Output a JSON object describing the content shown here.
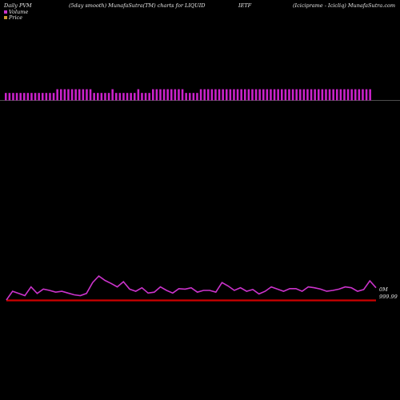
{
  "header": {
    "period": "Daily PVM",
    "description": "(5day smooth) MunafaSutra(TM) charts for LIQUID",
    "symbol": "IETF",
    "site": "(Iciciprame - Icicliq) MunafaSutra.com"
  },
  "legend": {
    "volume_label": "Volume",
    "price_label": "Price",
    "volume_color": "#cc33cc",
    "price_color": "#cc9933"
  },
  "colors": {
    "background": "#000000",
    "volume_bar": "#cc22cc",
    "volume_bar_down": "#33cc33",
    "price_line": "#cc33cc",
    "baseline": "#cc0000",
    "separator": "#999999"
  },
  "chart_data": [
    {
      "type": "bar",
      "title": "Volume",
      "values": [
        2,
        2,
        2,
        2,
        2,
        2,
        2,
        2,
        2,
        2,
        2,
        2,
        2,
        2,
        3,
        3,
        3,
        3,
        3,
        3,
        3,
        3,
        3,
        3,
        2,
        2,
        2,
        2,
        2,
        3,
        2,
        2,
        2,
        2,
        2,
        2,
        3,
        2,
        2,
        2,
        3,
        3,
        3,
        3,
        3,
        3,
        3,
        3,
        3,
        2,
        2,
        2,
        2,
        3,
        3,
        3,
        3,
        3,
        3,
        3,
        3,
        3,
        3,
        3,
        3,
        3,
        3,
        3,
        3,
        3,
        3,
        3,
        3,
        3,
        3,
        3,
        3,
        3,
        3,
        3,
        3,
        3,
        3,
        3,
        3,
        3,
        3,
        3,
        3,
        3,
        3,
        3,
        3,
        3,
        3,
        3,
        3,
        3,
        3,
        3
      ]
    },
    {
      "type": "line",
      "title": "Price",
      "values": [
        0,
        20,
        15,
        10,
        30,
        15,
        25,
        22,
        18,
        20,
        16,
        12,
        10,
        15,
        40,
        55,
        45,
        38,
        30,
        42,
        25,
        20,
        28,
        16,
        18,
        30,
        22,
        16,
        26,
        25,
        28,
        18,
        22,
        22,
        18,
        40,
        32,
        22,
        28,
        20,
        24,
        14,
        20,
        30,
        25,
        20,
        26,
        26,
        20,
        30,
        28,
        25,
        20,
        22,
        25,
        30,
        28,
        20,
        24,
        44,
        28
      ],
      "tick_labels": [
        "0M",
        "999.99"
      ]
    }
  ]
}
